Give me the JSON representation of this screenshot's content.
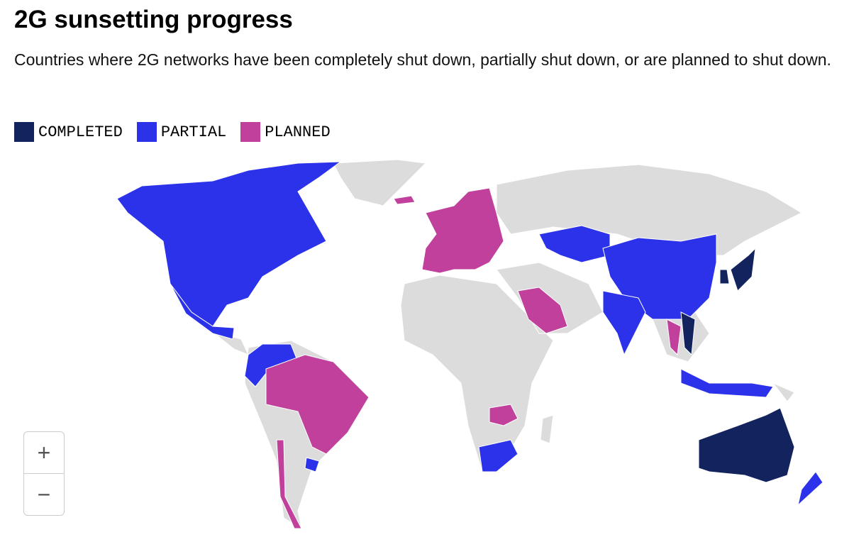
{
  "header": {
    "title": "2G sunsetting progress",
    "subtitle": "Countries where 2G networks have been completely shut down, partially shut down, or are planned to shut down."
  },
  "legend": [
    {
      "label": "COMPLETED",
      "color": "#13235e"
    },
    {
      "label": "PARTIAL",
      "color": "#2b32ea"
    },
    {
      "label": "PLANNED",
      "color": "#c1409b"
    }
  ],
  "zoom": {
    "in": "+",
    "out": "−"
  }
}
